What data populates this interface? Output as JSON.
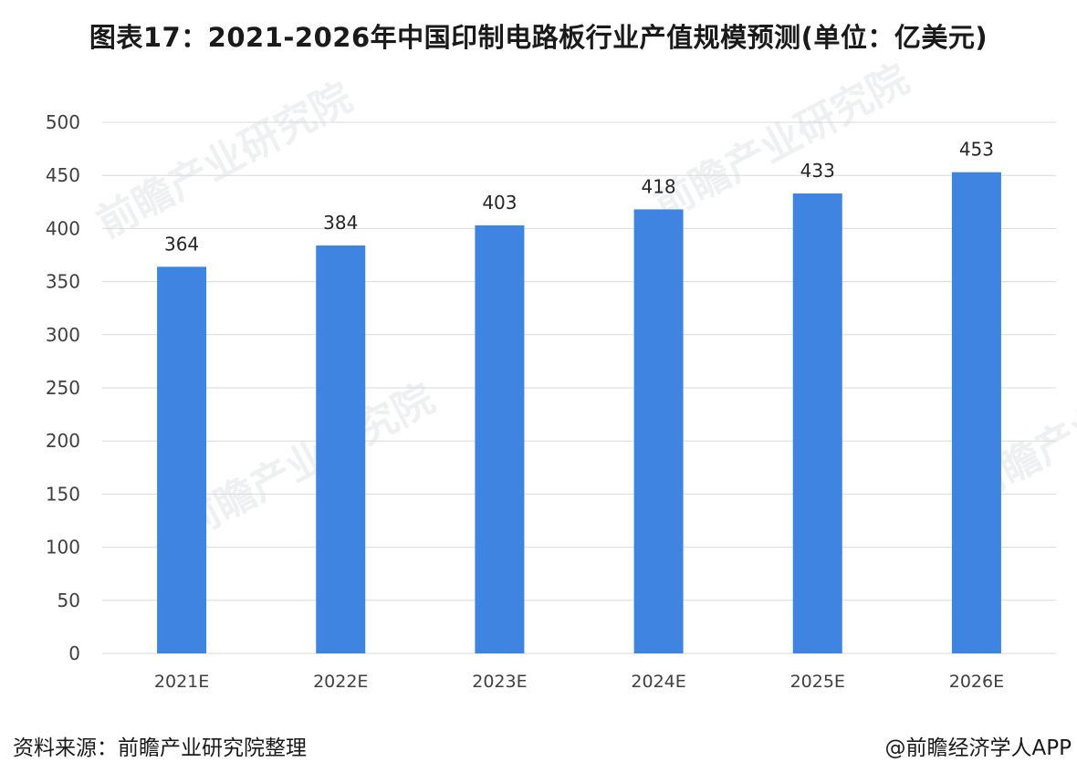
{
  "title": "图表17：2021-2026年中国印制电路板行业产值规模预测(单位：亿美元)",
  "footer": {
    "source": "资料来源：前瞻产业研究院整理",
    "credit": "@前瞻经济学人APP"
  },
  "watermark": {
    "text": "前瞻产业研究院"
  },
  "colors": {
    "bar": "#3f84e0",
    "grid": "#d9d9d9",
    "axis_text": "#404040"
  },
  "chart_data": {
    "type": "bar",
    "title": "图表17：2021-2026年中国印制电路板行业产值规模预测(单位：亿美元)",
    "categories": [
      "2021E",
      "2022E",
      "2023E",
      "2024E",
      "2025E",
      "2026E"
    ],
    "values": [
      364,
      384,
      403,
      418,
      433,
      453
    ],
    "data_labels": [
      "364",
      "384",
      "403",
      "418",
      "433",
      "453"
    ],
    "yticks": [
      0,
      50,
      100,
      150,
      200,
      250,
      300,
      350,
      400,
      450,
      500
    ],
    "ylim": [
      0,
      500
    ],
    "grid": true,
    "legend": "none",
    "xlabel": "",
    "ylabel": ""
  }
}
